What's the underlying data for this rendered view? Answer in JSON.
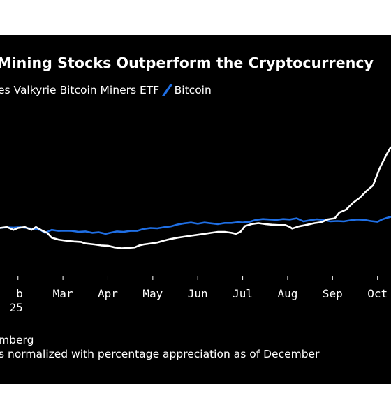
{
  "chart_data": {
    "type": "line",
    "title": "Mining Stocks Outperform the Cryptocurrency",
    "legend": {
      "placement": "top-left",
      "entries": [
        {
          "label": "es Valkyrie Bitcoin Miners ETF",
          "color": "#ffffff"
        },
        {
          "label": "Bitcoin",
          "color": "#1f6fe5"
        }
      ]
    },
    "x_ticks": [
      {
        "label": "b",
        "sub": "25",
        "month": 2
      },
      {
        "label": "Mar",
        "month": 3
      },
      {
        "label": "Apr",
        "month": 4
      },
      {
        "label": "May",
        "month": 5
      },
      {
        "label": "Jun",
        "month": 6
      },
      {
        "label": "Jul",
        "month": 7
      },
      {
        "label": "Aug",
        "month": 8
      },
      {
        "label": "Sep",
        "month": 9
      },
      {
        "label": "Oct",
        "month": 10
      }
    ],
    "x_range": [
      1.6,
      10.3
    ],
    "y_range": [
      -15,
      50
    ],
    "baseline": 0,
    "grid": false,
    "series": [
      {
        "name": "es Valkyrie Bitcoin Miners ETF",
        "color": "#ffffff",
        "points": [
          [
            1.6,
            0
          ],
          [
            1.75,
            0.5
          ],
          [
            1.9,
            -1
          ],
          [
            2.0,
            0
          ],
          [
            2.15,
            0.5
          ],
          [
            2.3,
            -1
          ],
          [
            2.4,
            0.5
          ],
          [
            2.55,
            -1.5
          ],
          [
            2.65,
            -2.5
          ],
          [
            2.75,
            -5
          ],
          [
            2.9,
            -6
          ],
          [
            3.05,
            -6.5
          ],
          [
            3.25,
            -7
          ],
          [
            3.4,
            -7.2
          ],
          [
            3.5,
            -8
          ],
          [
            3.7,
            -8.5
          ],
          [
            3.85,
            -9
          ],
          [
            4.0,
            -9.2
          ],
          [
            4.15,
            -10
          ],
          [
            4.3,
            -10.5
          ],
          [
            4.45,
            -10.3
          ],
          [
            4.6,
            -10
          ],
          [
            4.7,
            -9
          ],
          [
            4.8,
            -8.5
          ],
          [
            4.95,
            -8
          ],
          [
            5.1,
            -7.5
          ],
          [
            5.25,
            -6.5
          ],
          [
            5.4,
            -5.7
          ],
          [
            5.55,
            -5
          ],
          [
            5.7,
            -4.5
          ],
          [
            5.85,
            -4
          ],
          [
            6.0,
            -3.5
          ],
          [
            6.15,
            -3
          ],
          [
            6.3,
            -2.5
          ],
          [
            6.45,
            -2
          ],
          [
            6.6,
            -2
          ],
          [
            6.75,
            -2.5
          ],
          [
            6.85,
            -3
          ],
          [
            6.95,
            -2
          ],
          [
            7.05,
            1
          ],
          [
            7.2,
            2
          ],
          [
            7.35,
            2.5
          ],
          [
            7.5,
            2
          ],
          [
            7.65,
            1.7
          ],
          [
            7.8,
            1.5
          ],
          [
            7.95,
            1.5
          ],
          [
            8.05,
            0.5
          ],
          [
            8.1,
            -0.3
          ],
          [
            8.25,
            0.8
          ],
          [
            8.4,
            1.5
          ],
          [
            8.6,
            2.5
          ],
          [
            8.75,
            3
          ],
          [
            8.9,
            4.5
          ],
          [
            9.05,
            5
          ],
          [
            9.15,
            8
          ],
          [
            9.3,
            9.5
          ],
          [
            9.45,
            13
          ],
          [
            9.6,
            15.5
          ],
          [
            9.75,
            19
          ],
          [
            9.9,
            22
          ],
          [
            10.05,
            31
          ],
          [
            10.2,
            38
          ],
          [
            10.3,
            42
          ]
        ]
      },
      {
        "name": "Bitcoin",
        "color": "#1f6fe5",
        "points": [
          [
            1.6,
            0
          ],
          [
            1.75,
            0.3
          ],
          [
            1.9,
            0.2
          ],
          [
            2.05,
            0.4
          ],
          [
            2.2,
            0
          ],
          [
            2.35,
            -0.5
          ],
          [
            2.5,
            -1
          ],
          [
            2.6,
            -2.5
          ],
          [
            2.75,
            -1
          ],
          [
            2.9,
            -1.5
          ],
          [
            3.05,
            -1.4
          ],
          [
            3.2,
            -1.5
          ],
          [
            3.35,
            -2
          ],
          [
            3.5,
            -1.8
          ],
          [
            3.65,
            -2.5
          ],
          [
            3.8,
            -2.2
          ],
          [
            3.95,
            -3
          ],
          [
            4.05,
            -2.5
          ],
          [
            4.2,
            -1.8
          ],
          [
            4.35,
            -2
          ],
          [
            4.5,
            -1.5
          ],
          [
            4.65,
            -1.5
          ],
          [
            4.8,
            -0.5
          ],
          [
            4.95,
            0
          ],
          [
            5.1,
            -0.2
          ],
          [
            5.25,
            0.4
          ],
          [
            5.4,
            0.8
          ],
          [
            5.55,
            1.8
          ],
          [
            5.7,
            2.4
          ],
          [
            5.85,
            2.8
          ],
          [
            6.0,
            2.2
          ],
          [
            6.15,
            2.8
          ],
          [
            6.3,
            2.4
          ],
          [
            6.45,
            2.0
          ],
          [
            6.6,
            2.6
          ],
          [
            6.75,
            2.6
          ],
          [
            6.9,
            3
          ],
          [
            7.0,
            2.8
          ],
          [
            7.15,
            3.2
          ],
          [
            7.3,
            4.2
          ],
          [
            7.45,
            4.6
          ],
          [
            7.6,
            4.4
          ],
          [
            7.75,
            4.2
          ],
          [
            7.9,
            4.6
          ],
          [
            8.05,
            4.4
          ],
          [
            8.2,
            5
          ],
          [
            8.35,
            3.4
          ],
          [
            8.5,
            4
          ],
          [
            8.65,
            4.5
          ],
          [
            8.8,
            4.2
          ],
          [
            8.95,
            3.4
          ],
          [
            9.1,
            3.6
          ],
          [
            9.25,
            3.4
          ],
          [
            9.4,
            4.0
          ],
          [
            9.55,
            4.4
          ],
          [
            9.7,
            4.2
          ],
          [
            9.85,
            3.6
          ],
          [
            10.0,
            3.2
          ],
          [
            10.1,
            4.4
          ],
          [
            10.2,
            5.2
          ],
          [
            10.3,
            5.8
          ]
        ]
      }
    ],
    "source_text": "mberg",
    "note_text": "s normalized with percentage appreciation as of December"
  }
}
